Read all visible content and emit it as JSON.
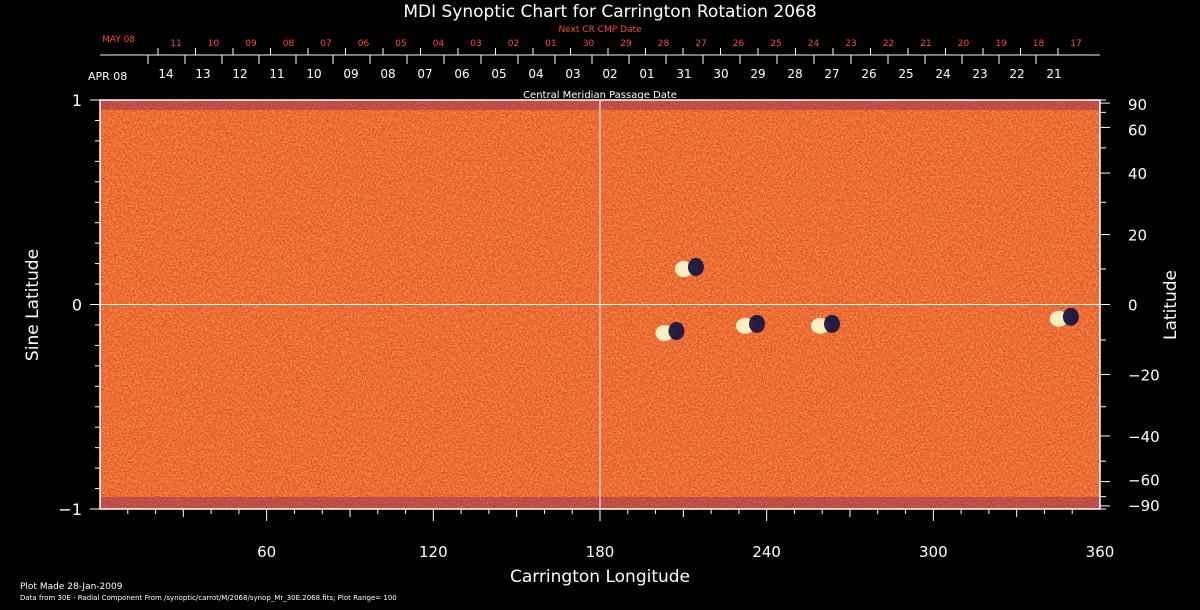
{
  "chart_data": {
    "type": "heatmap",
    "title": "MDI Synoptic Chart for Carrington Rotation 2068",
    "top_axis_red_label": "Next CR CMP Date",
    "top_axis_red_month": "MAY 08",
    "top_axis_red_ticks": [
      "11",
      "10",
      "09",
      "08",
      "07",
      "06",
      "05",
      "04",
      "03",
      "02",
      "01",
      "30",
      "29",
      "28",
      "27",
      "26",
      "25",
      "24",
      "23",
      "22",
      "21",
      "20",
      "19",
      "18",
      "17"
    ],
    "top_axis_month": "APR 08",
    "top_axis_ticks": [
      "14",
      "13",
      "12",
      "11",
      "10",
      "09",
      "08",
      "07",
      "06",
      "05",
      "04",
      "03",
      "02",
      "01",
      "31",
      "30",
      "29",
      "28",
      "27",
      "26",
      "25",
      "24",
      "23",
      "22",
      "21"
    ],
    "top_axis_label": "Central Meridian Passage Date",
    "xlabel": "Carrington Longitude",
    "xlim": [
      0,
      360
    ],
    "xticks": [
      60,
      120,
      180,
      240,
      300,
      360
    ],
    "ylabel_left": "Sine Latitude",
    "ylim": [
      -1,
      1
    ],
    "yticks_left": [
      {
        "value": 1,
        "label": "1"
      },
      {
        "value": 0,
        "label": "0"
      },
      {
        "value": -1,
        "label": "−1"
      }
    ],
    "ylabel_right": "Latitude",
    "yticks_right": [
      90,
      60,
      40,
      20,
      0,
      -20,
      -40,
      -60,
      -90
    ],
    "yticks_right_labels": [
      "90",
      "60",
      "40",
      "20",
      "0",
      "−20",
      "−40",
      "−60",
      "−90"
    ],
    "gridlines": {
      "x": [
        180
      ],
      "y": [
        0
      ]
    },
    "regions": [
      {
        "lon": 205,
        "lat": -8
      },
      {
        "lon": 234,
        "lat": -6
      },
      {
        "lon": 261,
        "lat": -6
      },
      {
        "lon": 212,
        "lat": 10
      },
      {
        "lon": 347,
        "lat": -4
      }
    ],
    "colors": {
      "background_field": "#e8501a",
      "positive": "#fff6c8",
      "negative": "#1b1740",
      "axes": "#ffffff",
      "secondary_axis": "#ff4a2a"
    }
  },
  "footer": {
    "plot_made": "Plot Made 28-Jan-2009",
    "data_line": "Data from 30E - Radial Component From /synoptic/carrot/M/2068/synop_Mr_30E.2068.fits; Plot Range=  100"
  }
}
